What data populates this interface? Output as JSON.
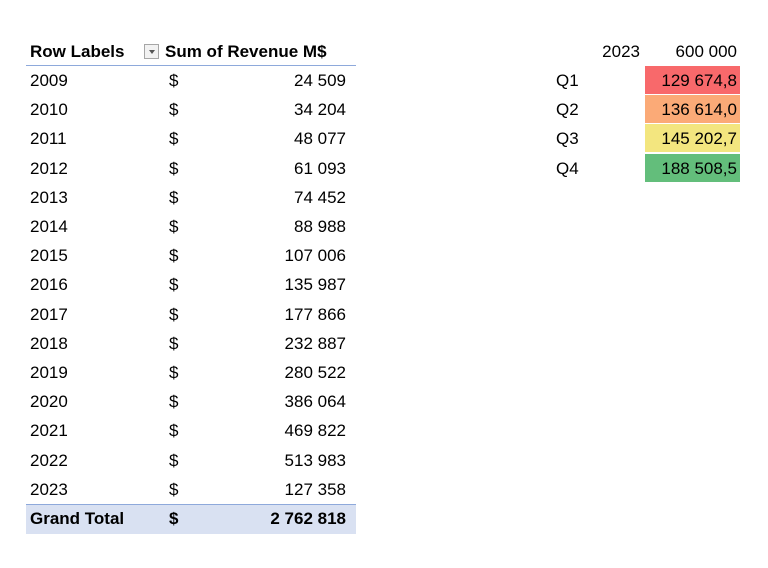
{
  "pivot": {
    "headers": [
      "Row Labels",
      "Sum of Revenue M$"
    ],
    "rows": [
      [
        "2009",
        "$",
        "24 509"
      ],
      [
        "2010",
        "$",
        "34 204"
      ],
      [
        "2011",
        "$",
        "48 077"
      ],
      [
        "2012",
        "$",
        "61 093"
      ],
      [
        "2013",
        "$",
        "74 452"
      ],
      [
        "2014",
        "$",
        "88 988"
      ],
      [
        "2015",
        "$",
        "107 006"
      ],
      [
        "2016",
        "$",
        "135 987"
      ],
      [
        "2017",
        "$",
        "177 866"
      ],
      [
        "2018",
        "$",
        "232 887"
      ],
      [
        "2019",
        "$",
        "280 522"
      ],
      [
        "2020",
        "$",
        "386 064"
      ],
      [
        "2021",
        "$",
        "469 822"
      ],
      [
        "2022",
        "$",
        "513 983"
      ],
      [
        "2023",
        "$",
        "127 358"
      ]
    ],
    "total": [
      "Grand Total",
      "$",
      "2 762 818"
    ]
  },
  "side_table": {
    "header": [
      "2023",
      "600 000"
    ],
    "rows": [
      {
        "label": "Q1",
        "value": "129 674,8",
        "color": "#f8696b"
      },
      {
        "label": "Q2",
        "value": "136 614,0",
        "color": "#fbaa77"
      },
      {
        "label": "Q3",
        "value": "145 202,7",
        "color": "#f3e67f"
      },
      {
        "label": "Q4",
        "value": "188 508,5",
        "color": "#63be7b"
      }
    ]
  }
}
